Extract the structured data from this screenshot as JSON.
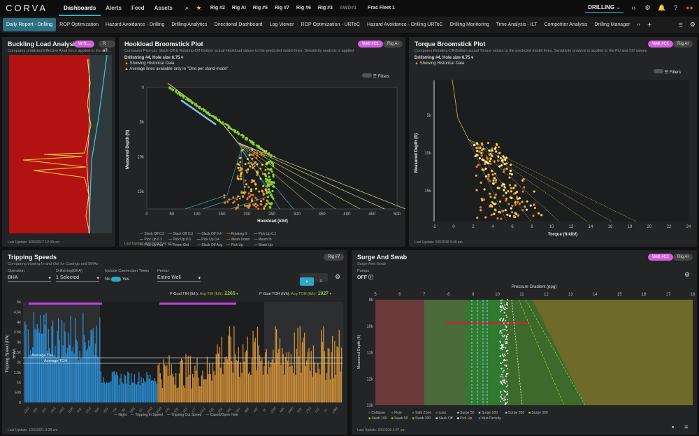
{
  "app": {
    "logo": "CORVA",
    "nav": [
      "Dashboards",
      "Alerts",
      "Feed",
      "Assets"
    ],
    "rigs": [
      "Rig #2",
      "Rig AI",
      "Rig #5",
      "Rig #7",
      "Rig #6",
      "Rig #3",
      "AWD#1",
      "Frac Fleet 1"
    ],
    "mode": "DRILLING"
  },
  "tabs": [
    "Daily Report - Drilling",
    "ROP Optimization",
    "Hazard Avoidance - Drilling",
    "Drilling Analytics",
    "Directional Dashboard",
    "Log Viewer",
    "ROP Optimization - URTeC",
    "Hazard Avoidance - Drilling URTeC",
    "Drilling Monitoring",
    "Time Analysis - ILT",
    "Competitor Analysis",
    "Drilling Manager"
  ],
  "buckling": {
    "title": "Buckling Load Analysis",
    "subtitle": "Compares predicted Effective Axial force applied to the drill...",
    "tag1": "W N...",
    "tag2": "R #7",
    "foot": "Last Update: 9/30/2017 12:39 pm"
  },
  "hookload": {
    "title": "Hookload Broomstick Plot",
    "subtitle": "Compares Pick-Up, Slack-Off & Rotating-Off-Bottom actual Hookload values to the predicted model lines. Sensitivity analysis is applied to the PU and SO values in...",
    "tag1": "Well #C1",
    "tag2": "Rig AI",
    "drillstring": "Drillstring #4, Hole size 6.75",
    "hist": "Showing Historical Data",
    "avg": "Average lines available only in \"One per stand mode\"",
    "filters": "Filters",
    "xlabel": "Hookload (klbf)",
    "ylabel": "Measured Depth (ft)",
    "xticks": [
      "0",
      "50",
      "100",
      "150",
      "200",
      "250",
      "300",
      "350",
      "400",
      "450",
      "500"
    ],
    "yticks": [
      "0",
      "5k",
      "10k",
      "15k"
    ],
    "legend": [
      "Slack Off 0.2",
      "Slack Off 0.3",
      "Slack Off 0.4",
      "Rotating 0",
      "Pick Up 0.1",
      "Pick Up 0.2",
      "Pick Up 0.3",
      "Pick Up 0.4",
      "Wash Down",
      "Ream In",
      "Pick Up Avg",
      "Ream Out",
      "Slack Off Avg",
      "Pick Up",
      "Wash Up",
      "Rotating Avg"
    ],
    "foot": "Last Update: 9/6/2018 9:46 am"
  },
  "torque": {
    "title": "Torque Broomstick Plot",
    "subtitle": "Compares Rotating-Off-Bottom actual Torque values to the predicted model lines. Sensitivity analysis is applied to the PU and SO values in increments of 0.10 FF...",
    "tag1": "Well #C1",
    "tag2": "Rig AI",
    "drillstring": "Drillstring #4, Hole size 6.75",
    "hist": "Showing Historical Data",
    "filters": "Filters",
    "xlabel": "Torque (ft-klbf)",
    "ylabel": "Measured Depth (ft)",
    "xticks": [
      "-2",
      "0",
      "2",
      "4",
      "6",
      "8",
      "10",
      "12",
      "14",
      "16",
      "18",
      "20",
      "22",
      "24"
    ],
    "yticks": [
      "5k",
      "10k",
      "15k"
    ],
    "foot": "Last Update: 9/6/2018 9:46 am"
  },
  "tripping": {
    "title": "Tripping Speeds",
    "subtitle": "Comparing tripping In and Out for Casings and BHAs",
    "tag": "Rig #7",
    "operation_label": "Operation",
    "operation": "BHA",
    "drillstring_label": "Drillstring(BHA)",
    "drillstring": "1 Selected",
    "conn_label": "Include Connection Times",
    "no": "No",
    "yes": "Yes",
    "period_label": "Period",
    "period": "Entire Well",
    "pgoal_tih": "P Goal TIH (ft/h):",
    "avg_tih_label": "Avg TIH (ft/h):",
    "avg_tih": "2265",
    "pgoal_toh": "P Goal TOH (ft/h):",
    "avg_toh_label": "Avg TOH (ft/h):",
    "avg_toh": "1927",
    "ylabel": "Tripping Speed (ft/h)",
    "bha": "BHA 5",
    "avg_tih_line": "Average TIH",
    "avg_toh_line": "Average TOH",
    "yticks": [
      "5k",
      "4.5k",
      "4k",
      "3.5k",
      "3k",
      "2.5k",
      "2k",
      "1.5k",
      "1k",
      "500",
      "0"
    ],
    "legend": [
      "Night",
      "Tripping In Speed",
      "Tripping Out Speed",
      "Cased/Open Hole"
    ],
    "foot": "Last Update: 1/26/2021 9:28 am"
  },
  "surge": {
    "title": "Surge And Swab",
    "subtitle": "Surge And Swab",
    "tag1": "Well #C1",
    "tag2": "Rig AI",
    "pumps_label": "Pumps",
    "pumps": "OFF",
    "xlabel": "Pressure Gradient (ppg)",
    "ylabel": "Measured Depth (ft)",
    "xticks": [
      "5",
      "6",
      "7",
      "8",
      "9",
      "10",
      "11",
      "12",
      "13",
      "14",
      "15",
      "16",
      "17",
      "18"
    ],
    "yticks": [
      "9k",
      "10k",
      "11k",
      "12k",
      "13k"
    ],
    "legend": [
      "Collapse",
      "Flow",
      "Safe Zone",
      "Loss",
      "Surge 50",
      "Surge 100",
      "Surge 200",
      "Surge 300",
      "Swab 100",
      "Swab 50",
      "Swab 300",
      "Slack Off",
      "Pick Up",
      "Mud Density"
    ],
    "foot": "Last Update: 9/6/2018 4:07 am"
  }
}
